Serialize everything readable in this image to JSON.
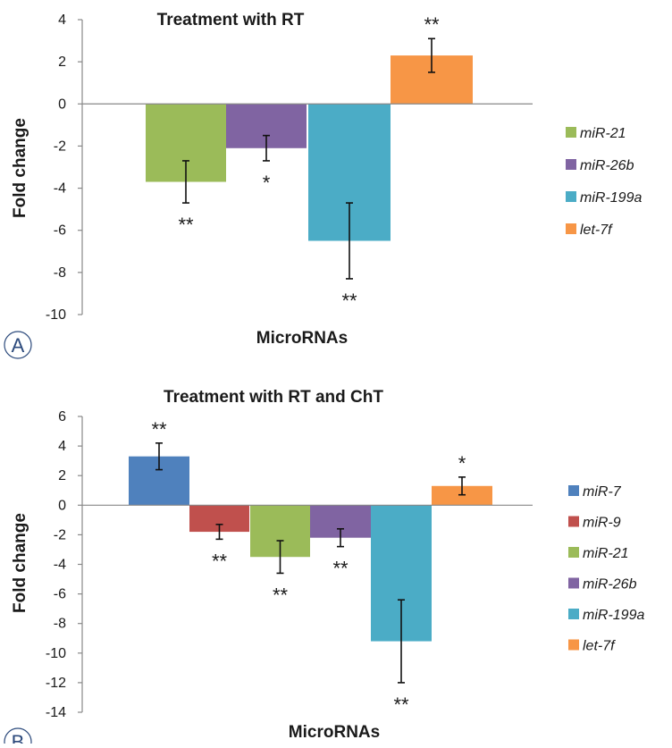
{
  "chart_data": [
    {
      "type": "bar",
      "title": "Treatment with RT",
      "ylabel": "Fold change",
      "xlabel": "MicroRNAs",
      "panel_label": "A",
      "ylim": [
        -10,
        4
      ],
      "yticks": [
        4,
        2,
        0,
        -2,
        -4,
        -6,
        -8,
        -10
      ],
      "legend_position": "right",
      "series": [
        {
          "name": "miR-21",
          "value": -3.7,
          "error": 1.0,
          "significance": "**",
          "color": "#9BBB59"
        },
        {
          "name": "miR-26b",
          "value": -2.1,
          "error": 0.6,
          "significance": "*",
          "color": "#8064A2"
        },
        {
          "name": "miR-199a",
          "value": -6.5,
          "error": 1.8,
          "significance": "**",
          "color": "#4BACC6"
        },
        {
          "name": "let-7f",
          "value": 2.3,
          "error": 0.8,
          "significance": "**",
          "color": "#F79646"
        }
      ]
    },
    {
      "type": "bar",
      "title": "Treatment with RT and ChT",
      "ylabel": "Fold change",
      "xlabel": "MicroRNAs",
      "panel_label": "B",
      "ylim": [
        -14,
        6
      ],
      "yticks": [
        6,
        4,
        2,
        0,
        -2,
        -4,
        -6,
        -8,
        -10,
        -12,
        -14
      ],
      "legend_position": "right",
      "series": [
        {
          "name": "miR-7",
          "value": 3.3,
          "error": 0.9,
          "significance": "**",
          "color": "#4F81BD"
        },
        {
          "name": "miR-9",
          "value": -1.8,
          "error": 0.5,
          "significance": "**",
          "color": "#C0504D"
        },
        {
          "name": "miR-21",
          "value": -3.5,
          "error": 1.1,
          "significance": "**",
          "color": "#9BBB59"
        },
        {
          "name": "miR-26b",
          "value": -2.2,
          "error": 0.6,
          "significance": "**",
          "color": "#8064A2"
        },
        {
          "name": "miR-199a",
          "value": -9.2,
          "error": 2.8,
          "significance": "**",
          "color": "#4BACC6"
        },
        {
          "name": "let-7f",
          "value": 1.3,
          "error": 0.6,
          "significance": "*",
          "color": "#F79646"
        }
      ]
    }
  ]
}
